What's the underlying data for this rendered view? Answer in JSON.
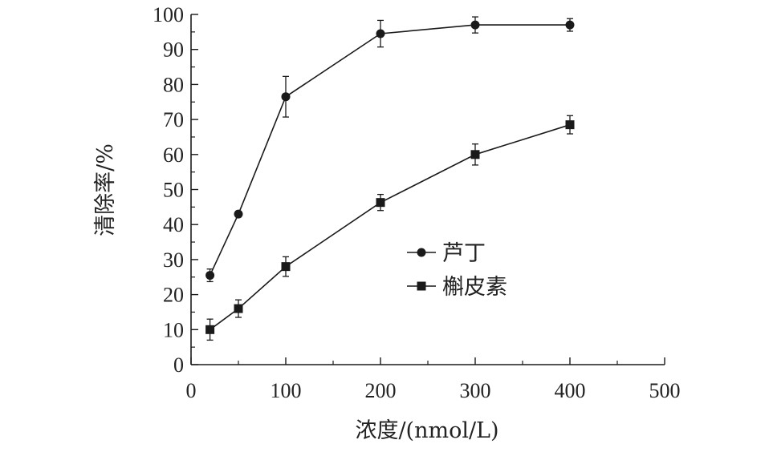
{
  "chart_data": {
    "type": "line",
    "title": "",
    "xlabel": "浓度/(nmol/L)",
    "ylabel": "清除率/%",
    "xlim": [
      0,
      500
    ],
    "ylim": [
      0,
      100
    ],
    "x_ticks": [
      0,
      100,
      200,
      300,
      400,
      500
    ],
    "y_ticks": [
      0,
      10,
      20,
      30,
      40,
      50,
      60,
      70,
      80,
      90,
      100
    ],
    "grid": false,
    "legend_position": "center-right",
    "series": [
      {
        "name": "芦丁",
        "marker": "circle",
        "color": "#1a1a1a",
        "x": [
          20,
          50,
          100,
          200,
          300,
          400
        ],
        "y": [
          25.5,
          43,
          76.5,
          94.5,
          97,
          97
        ],
        "err": [
          1.8,
          0.8,
          5.8,
          3.8,
          2.3,
          1.8
        ]
      },
      {
        "name": "槲皮素",
        "marker": "square",
        "color": "#1a1a1a",
        "x": [
          20,
          50,
          100,
          200,
          300,
          400
        ],
        "y": [
          10,
          16,
          28,
          46.3,
          60,
          68.5
        ],
        "err": [
          3,
          2.5,
          2.8,
          2.3,
          3,
          2.6
        ]
      }
    ]
  }
}
